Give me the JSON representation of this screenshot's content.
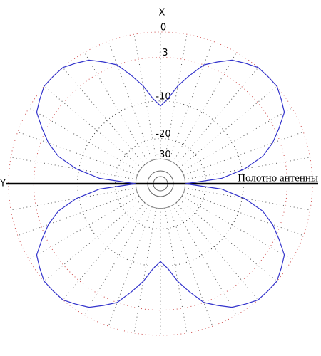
{
  "chart_data": {
    "type": "polar",
    "x_axis_label": "X",
    "y_axis_label": "Y",
    "annotation": "Полотно антенны",
    "angles": [
      0,
      5,
      10,
      15,
      20,
      25,
      30,
      35,
      40,
      45,
      50,
      55,
      60,
      65,
      70,
      75,
      80,
      85,
      90,
      95,
      100,
      105,
      110,
      115,
      120,
      125,
      130,
      135,
      140,
      145,
      150,
      155,
      160,
      165,
      170,
      175,
      180,
      185,
      190,
      195,
      200,
      205,
      210,
      215,
      220,
      225,
      230,
      235,
      240,
      245,
      250,
      255,
      260,
      265,
      270,
      275,
      280,
      285,
      290,
      295,
      300,
      305,
      310,
      315,
      320,
      325,
      330,
      335,
      340,
      345,
      350,
      355
    ],
    "values": [
      -11,
      -9.5,
      -7,
      -5,
      -3,
      -2,
      -1,
      -0.5,
      0,
      0,
      0,
      -0.5,
      -1,
      -2.5,
      -4,
      -6,
      -9.5,
      -15,
      -30,
      -15,
      -9.5,
      -6,
      -4,
      -2.5,
      -1,
      -0.5,
      0,
      0,
      0,
      -0.5,
      -1,
      -2,
      -3,
      -5,
      -7,
      -9.5,
      -11,
      -9.5,
      -7,
      -5,
      -3,
      -2,
      -1,
      -0.5,
      0,
      0,
      0,
      -0.5,
      -1,
      -2.5,
      -4,
      -6,
      -9.5,
      -15,
      -30,
      -15,
      -9.5,
      -6,
      -4,
      -2.5,
      -1,
      -0.5,
      0,
      0,
      0,
      -0.5,
      -1,
      -2,
      -3,
      -5,
      -7,
      -9.5
    ],
    "color": "#3333cc",
    "rticks": [
      0,
      -3,
      -10,
      -20,
      -30
    ]
  }
}
